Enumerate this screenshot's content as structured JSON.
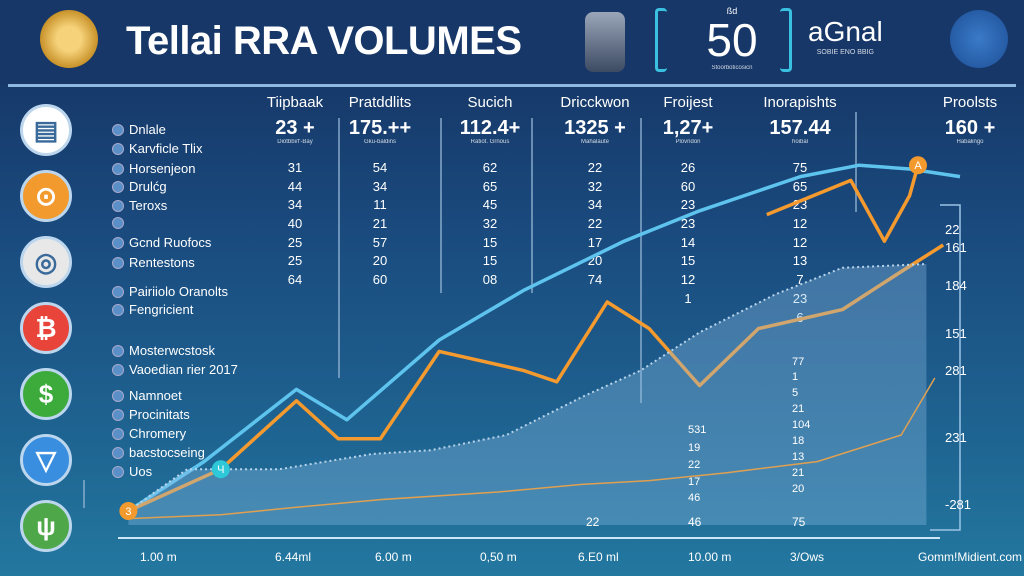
{
  "header": {
    "title": "Tellai RRA VOLUMES",
    "badge_top": "ßd",
    "badge_number": "50",
    "badge_sub": "Stoorboticosicn",
    "brand_name": "aGnal",
    "brand_sub": "SOBIE ENO BBIG"
  },
  "left_icons": [
    {
      "name": "document-icon",
      "glyph": "▤",
      "color": "#ffffff"
    },
    {
      "name": "coin-icon",
      "glyph": "⊙",
      "color": "#f29a2e"
    },
    {
      "name": "coins-icon",
      "glyph": "◎",
      "color": "#e8e8e8"
    },
    {
      "name": "bitcoin-icon",
      "glyph": "₿",
      "color": "#e8443a"
    },
    {
      "name": "dollar-icon",
      "glyph": "$",
      "color": "#3cab3c"
    },
    {
      "name": "cup-icon",
      "glyph": "▽",
      "color": "#3a8ee0"
    },
    {
      "name": "plug-icon",
      "glyph": "ψ",
      "color": "#4ea84a"
    }
  ],
  "legend": [
    "Dnlale",
    "Karvficle Tlix",
    "Horsenjeon",
    "Drulćg",
    "Teroxs",
    "",
    "Gcnd Ruofocs",
    "Rentestons",
    "Pairiiolo Oranolts",
    "Fengricient",
    "Mosterwcstosk",
    "Vaoedian rier 2017",
    "Namnoet",
    "Procinitats",
    "Chromery",
    "bacstocseing",
    "Uos"
  ],
  "table": {
    "columns": [
      {
        "header": "Tiipbaak",
        "value": "23 +",
        "sub": "Diotbbi/f'-Bay",
        "rows": [
          "31",
          "44",
          "34",
          "40",
          "25",
          "25",
          "64"
        ]
      },
      {
        "header": "Pratddlits",
        "value": "175.++",
        "sub": "Gku-baldins",
        "rows": [
          "54",
          "34",
          "11",
          "21",
          "57",
          "20",
          "60"
        ]
      },
      {
        "header": "Sucich",
        "value": "112.4+",
        "sub": "Ratiot. Grnous",
        "rows": [
          "62",
          "65",
          "45",
          "32",
          "15",
          "15",
          "08"
        ]
      },
      {
        "header": "Dricckwon",
        "value": "1325 +",
        "sub": "Mahalaute",
        "rows": [
          "22",
          "32",
          "34",
          "22",
          "17",
          "20",
          "74"
        ]
      },
      {
        "header": "Froijest",
        "value": "1,27+",
        "sub": "Plovndon",
        "rows": [
          "26",
          "60",
          "23",
          "23",
          "14",
          "15",
          "12",
          "1"
        ]
      },
      {
        "header": "Inorapishts",
        "value": "157.44",
        "sub": "hoibal",
        "rows": [
          "75",
          "65",
          "23",
          "12",
          "12",
          "13",
          "7",
          "23",
          "6"
        ]
      },
      {
        "header": "Proolsts",
        "value": "160 +",
        "sub": "Habalingo",
        "rows": []
      }
    ]
  },
  "chart_data": {
    "type": "line",
    "x_ticks": [
      "1.00 m",
      "6.44ml",
      "6.00 m",
      "0,50 m",
      "6.E0 ml",
      "10.00 m",
      "3/Ows"
    ],
    "right_axis_labels": [
      "22",
      "161",
      "184",
      "151",
      "281",
      "231",
      "-281"
    ],
    "inline_labels_a": [
      "531",
      "19",
      "22",
      "17",
      "46"
    ],
    "inline_labels_b": [
      "77",
      "1",
      "5",
      "21",
      "104",
      "18",
      "13",
      "21",
      "20"
    ],
    "bottom_labels": [
      "22",
      "46",
      "75"
    ],
    "footer_note": "Gomm!Midient.com",
    "markers": [
      {
        "label": "3",
        "x": 1,
        "y": 5,
        "color": "#f29a2e"
      },
      {
        "label": "Ч",
        "x": 12,
        "y": 16,
        "color": "#2ec8d8"
      },
      {
        "label": "A",
        "x": 95,
        "y": 96,
        "color": "#f29a2e"
      }
    ],
    "x_range": [
      0,
      100
    ],
    "y_range": [
      0,
      100
    ],
    "grid": false,
    "series": [
      {
        "color": "#5ec4ee",
        "style": "line",
        "x": [
          1,
          10,
          21,
          27,
          38,
          48,
          60,
          69,
          81,
          88,
          94,
          100
        ],
        "y": [
          5,
          18,
          37,
          29,
          50,
          63,
          76,
          84,
          93,
          96,
          95,
          93
        ]
      },
      {
        "color": "#f59a2e",
        "style": "line",
        "x": [
          1,
          12,
          21,
          26,
          31,
          38,
          48,
          52,
          58,
          63,
          69,
          76,
          86,
          93,
          98
        ],
        "y": [
          5,
          16,
          34,
          24,
          24,
          47,
          42,
          39,
          60,
          53,
          38,
          53,
          58,
          68,
          75
        ]
      },
      {
        "color": "#f59a2e",
        "style": "line",
        "x": [
          77,
          87,
          91,
          94,
          95
        ],
        "y": [
          83,
          92,
          76,
          88,
          96
        ]
      },
      {
        "color": "#b8d4ea",
        "style": "dotted-area",
        "x": [
          1,
          8,
          19,
          30,
          37,
          46,
          55,
          62,
          69,
          78,
          86,
          96
        ],
        "y": [
          5,
          16,
          16,
          20,
          21,
          25,
          35,
          42,
          52,
          62,
          69,
          70
        ]
      },
      {
        "color": "#e0a050",
        "style": "line-thin",
        "x": [
          1,
          12,
          21,
          31,
          45,
          55,
          63,
          72,
          83,
          93,
          97
        ],
        "y": [
          3,
          4,
          6,
          8,
          10,
          12,
          13,
          15,
          18,
          25,
          40
        ]
      }
    ]
  }
}
